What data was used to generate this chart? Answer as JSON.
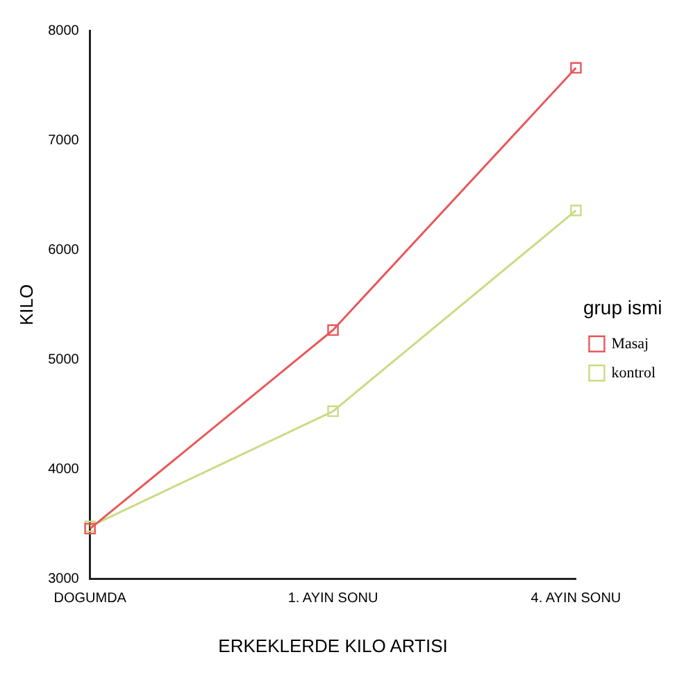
{
  "chart_data": {
    "type": "line",
    "xlabel": "ERKEKLERDE KILO ARTISI",
    "ylabel": "KILO",
    "legend_title": "grup ismi",
    "categories": [
      "DOGUMDA",
      "1. AYIN SONU",
      "4. AYIN SONU"
    ],
    "series": [
      {
        "name": "Masaj",
        "color": "#e8585a",
        "values": [
          3460,
          5270,
          7660
        ]
      },
      {
        "name": "kontrol",
        "color": "#c8dc84",
        "values": [
          3480,
          4530,
          6360
        ]
      }
    ],
    "ylim": [
      3000,
      8000
    ],
    "yticks": [
      3000,
      4000,
      5000,
      6000,
      7000,
      8000
    ],
    "grid": false,
    "legend": "right",
    "marker": "square",
    "line_style": "solid"
  }
}
